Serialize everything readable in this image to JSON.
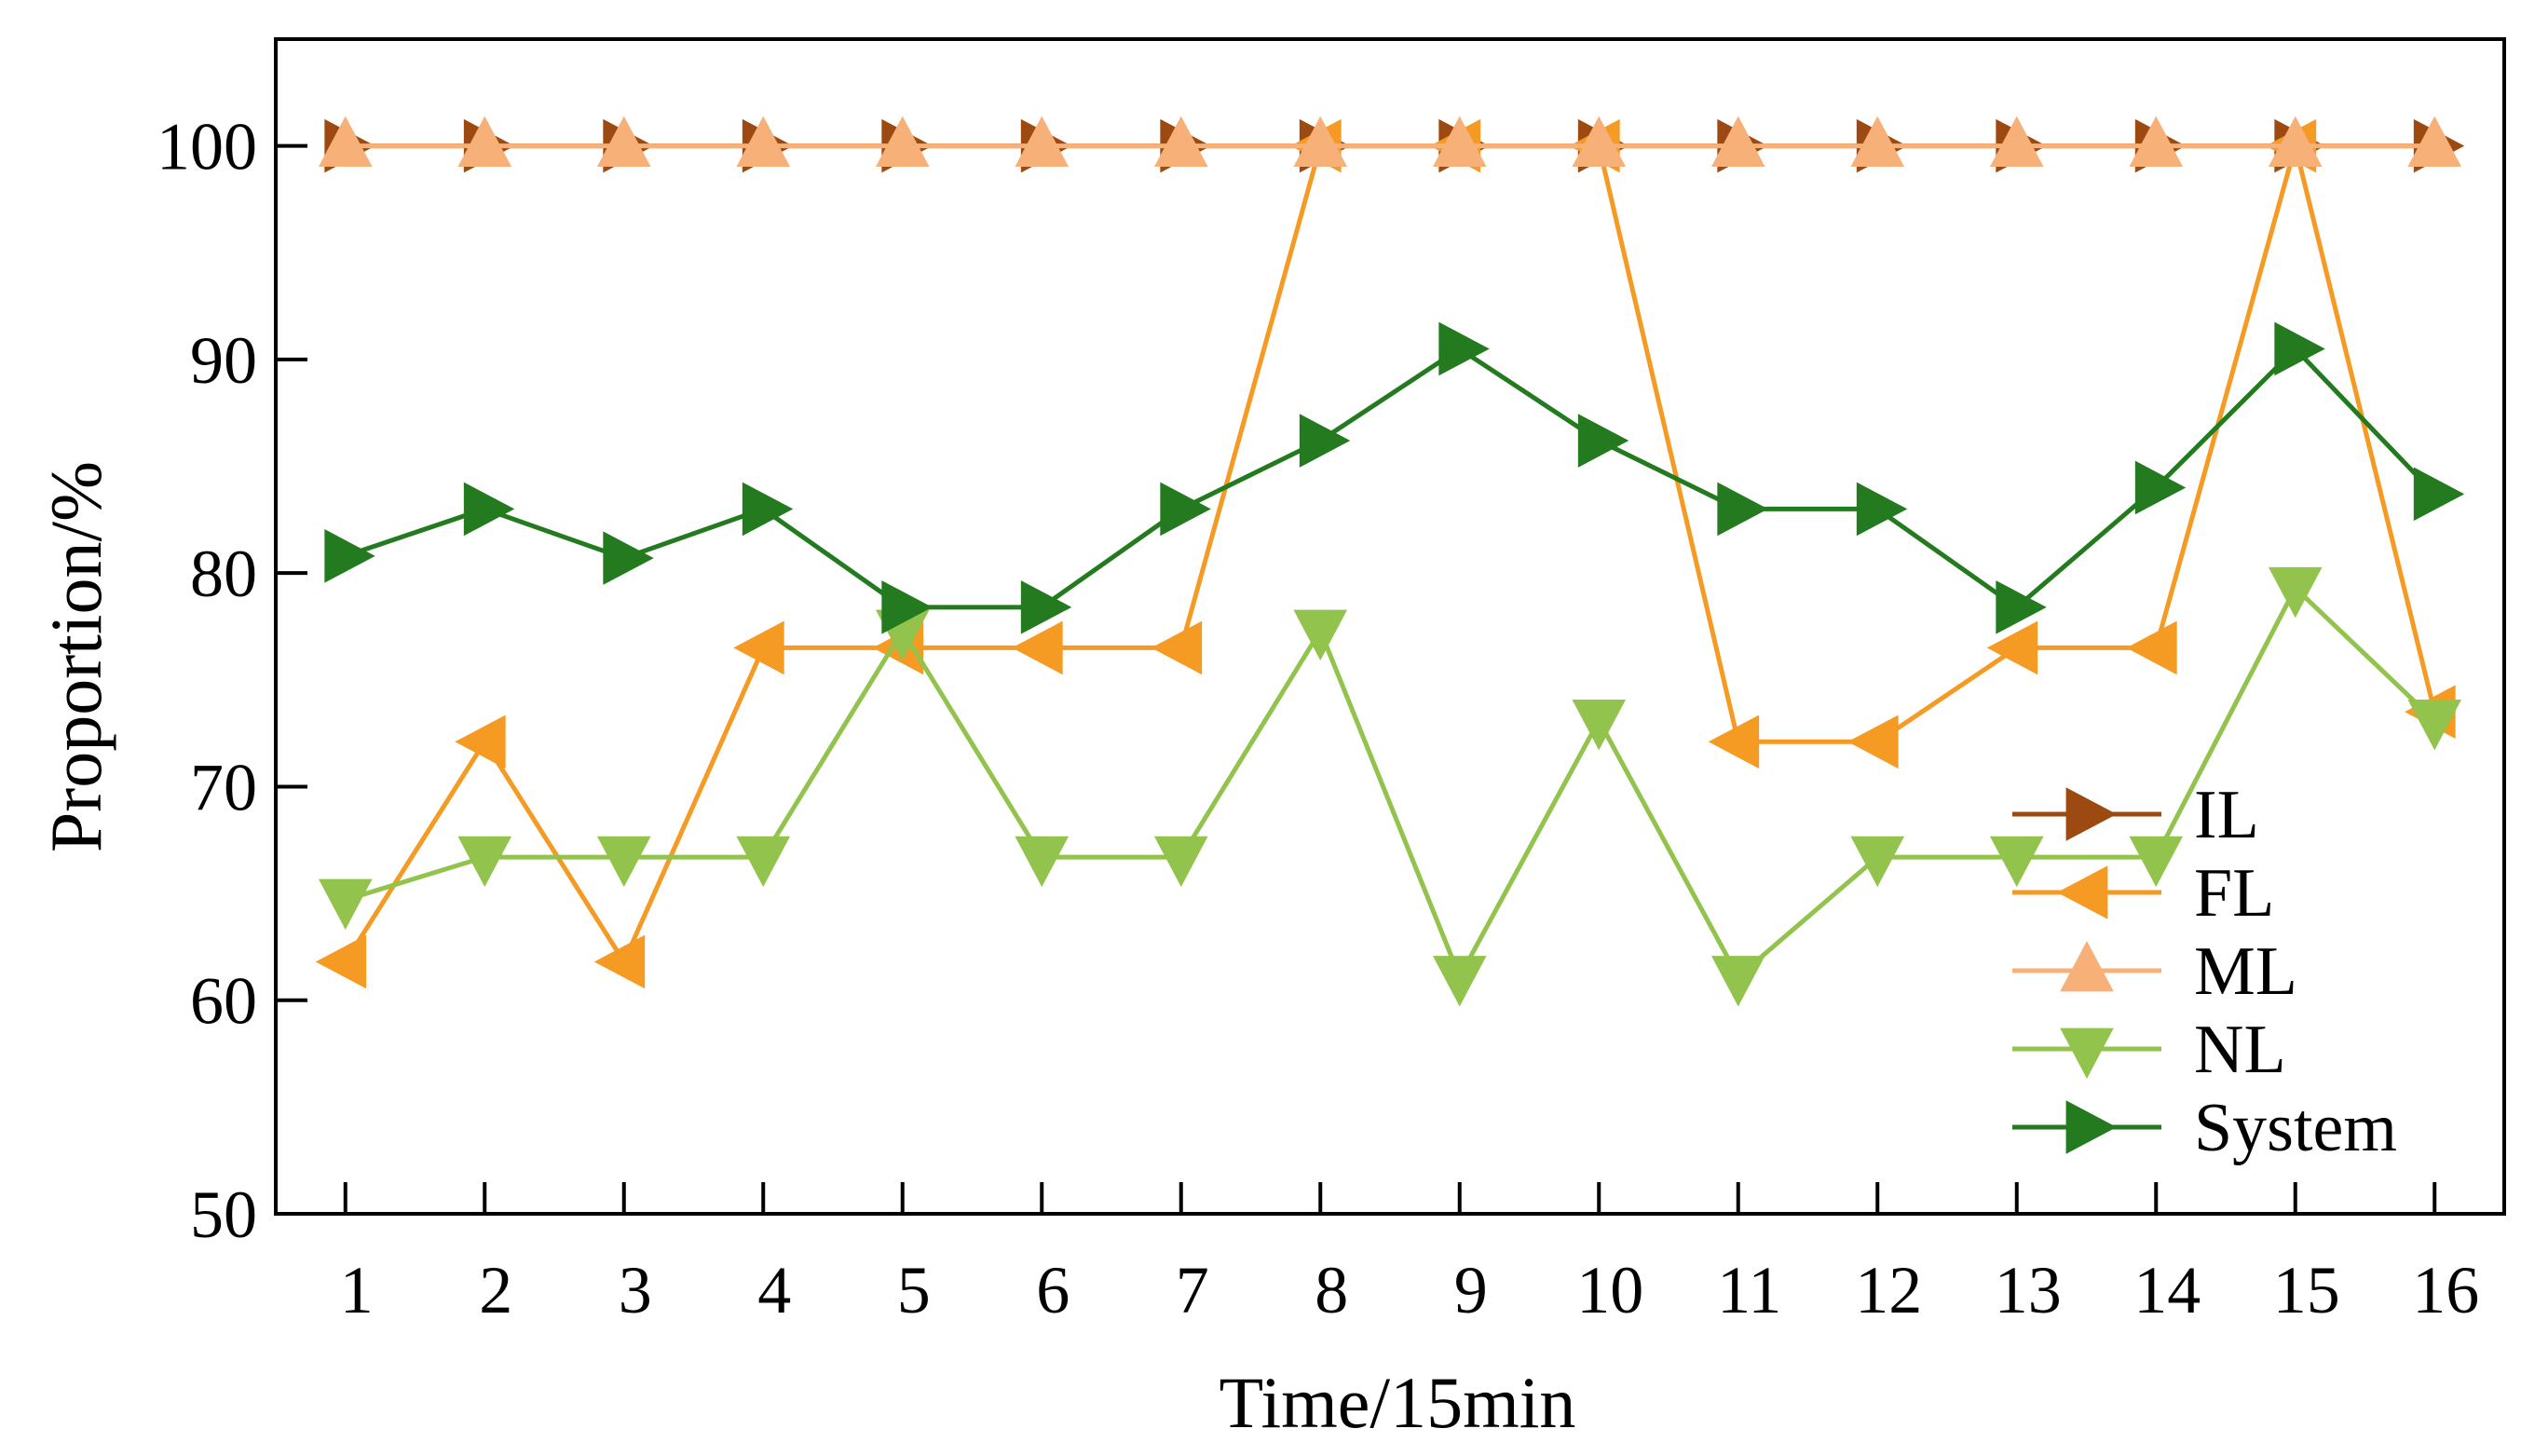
{
  "chart_data": {
    "type": "line",
    "title": "",
    "xlabel": "Time/15min",
    "ylabel": "Proportion/%",
    "categories": [
      "1",
      "2",
      "3",
      "4",
      "5",
      "6",
      "7",
      "8",
      "9",
      "10",
      "11",
      "12",
      "13",
      "14",
      "15",
      "16"
    ],
    "y_ticks": [
      "50",
      "60",
      "70",
      "80",
      "90",
      "100"
    ],
    "xlim": [
      0.5,
      16.5
    ],
    "ylim": [
      50,
      105
    ],
    "grid": false,
    "legend_position": "bottom-right",
    "series": [
      {
        "name": "IL",
        "color": "#9c4a12",
        "marker": "triangle-right",
        "values": [
          100,
          100,
          100,
          100,
          100,
          100,
          100,
          100,
          100,
          100,
          100,
          100,
          100,
          100,
          100,
          100
        ]
      },
      {
        "name": "FL",
        "color": "#f59a23",
        "marker": "triangle-left",
        "values": [
          61.8,
          72.1,
          61.8,
          76.5,
          76.5,
          76.5,
          76.5,
          100,
          100,
          100,
          72.1,
          72.1,
          76.5,
          76.5,
          100,
          73.5
        ]
      },
      {
        "name": "ML",
        "color": "#f6b078",
        "marker": "triangle-up",
        "values": [
          100,
          100,
          100,
          100,
          100,
          100,
          100,
          100,
          100,
          100,
          100,
          100,
          100,
          100,
          100,
          100
        ]
      },
      {
        "name": "NL",
        "color": "#92c34c",
        "marker": "triangle-down",
        "values": [
          64.7,
          66.7,
          66.7,
          66.7,
          77.3,
          66.7,
          66.7,
          77.3,
          61.1,
          73.1,
          61.1,
          66.7,
          66.7,
          66.7,
          79.3,
          73.1
        ]
      },
      {
        "name": "System",
        "color": "#237a1f",
        "marker": "triangle-right",
        "values": [
          80.8,
          83.0,
          80.7,
          83.0,
          78.4,
          78.4,
          83.0,
          86.2,
          90.5,
          86.2,
          83.0,
          83.0,
          78.4,
          84.0,
          90.5,
          83.7
        ]
      }
    ]
  }
}
